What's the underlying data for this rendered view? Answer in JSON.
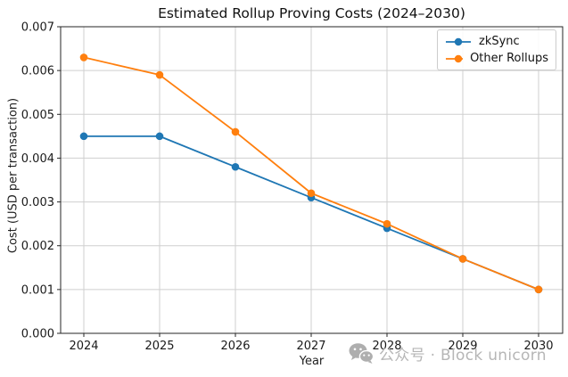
{
  "chart_data": {
    "type": "line",
    "title": "Estimated Rollup Proving Costs (2024–2030)",
    "xlabel": "Year",
    "ylabel": "Cost (USD per transaction)",
    "x": [
      2024,
      2025,
      2026,
      2027,
      2028,
      2029,
      2030
    ],
    "series": [
      {
        "name": "zkSync",
        "color": "#1f77b4",
        "values": [
          0.0045,
          0.0045,
          0.0038,
          0.0031,
          0.0024,
          0.0017,
          0.001
        ]
      },
      {
        "name": "Other Rollups",
        "color": "#ff7f0e",
        "values": [
          0.0063,
          0.0059,
          0.0046,
          0.0032,
          0.0025,
          0.0017,
          0.001
        ]
      }
    ],
    "ylim": [
      0,
      0.007
    ],
    "ytick_step": 0.001,
    "ytick_labels": [
      "0.000",
      "0.001",
      "0.002",
      "0.003",
      "0.004",
      "0.005",
      "0.006",
      "0.007"
    ],
    "grid": true,
    "legend_position": "top-right",
    "marker": "circle"
  },
  "colors": {
    "grid": "#cfcfcf",
    "spine": "#262626",
    "tick_text": "#1a1a1a",
    "watermark": "#b6b6b6"
  },
  "watermark": {
    "icon": "wechat-icon",
    "text": "公众号 · Block unicorn"
  }
}
